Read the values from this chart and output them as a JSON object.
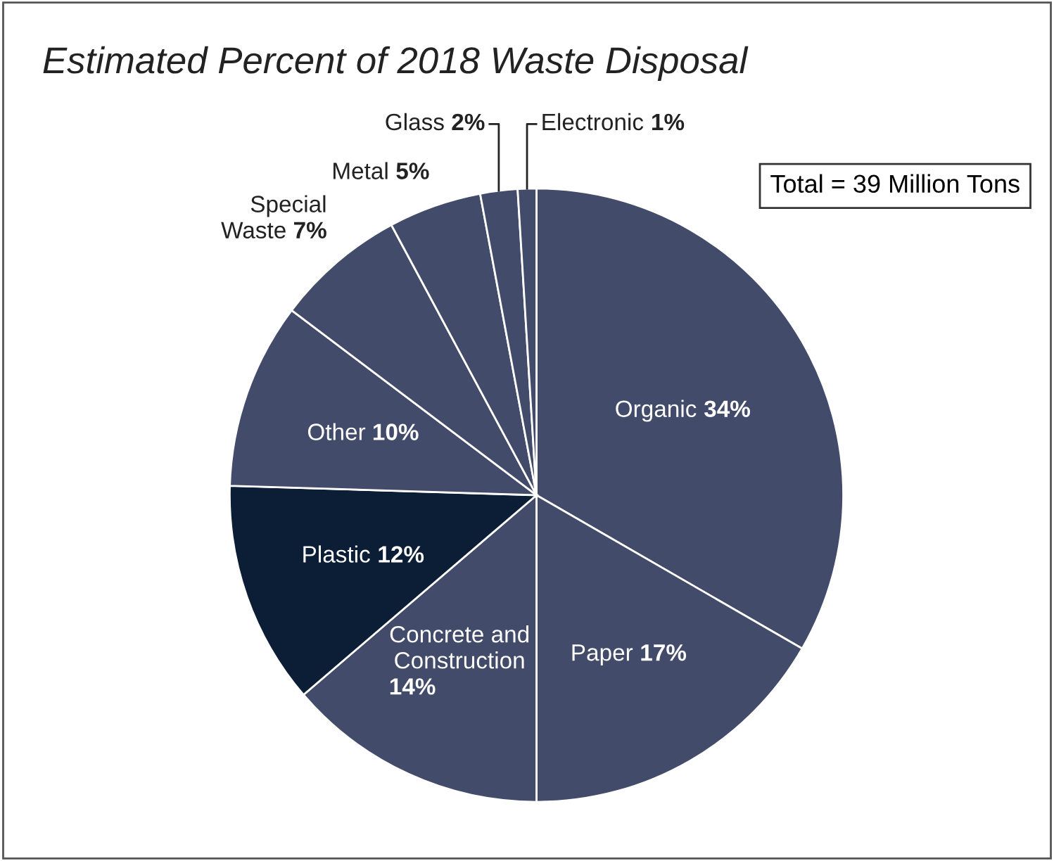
{
  "chart_data": {
    "type": "pie",
    "title": "Estimated Percent of 2018 Waste Disposal",
    "categories": [
      "Organic",
      "Paper",
      "Concrete and\nConstruction",
      "Plastic",
      "Other",
      "Special\nWaste",
      "Metal",
      "Glass",
      "Electronic"
    ],
    "values": [
      34,
      17,
      14,
      12,
      10,
      7,
      5,
      2,
      1
    ],
    "value_labels": [
      "34%",
      "17%",
      "14%",
      "12%",
      "10%",
      "7%",
      "5%",
      "2%",
      "1%"
    ],
    "colors": [
      "#434b6a",
      "#434b6a",
      "#434b6a",
      "#0c1e36",
      "#434b6a",
      "#434b6a",
      "#434b6a",
      "#434b6a",
      "#434b6a"
    ],
    "annotations": [
      "Total = 39 Million Tons"
    ]
  }
}
